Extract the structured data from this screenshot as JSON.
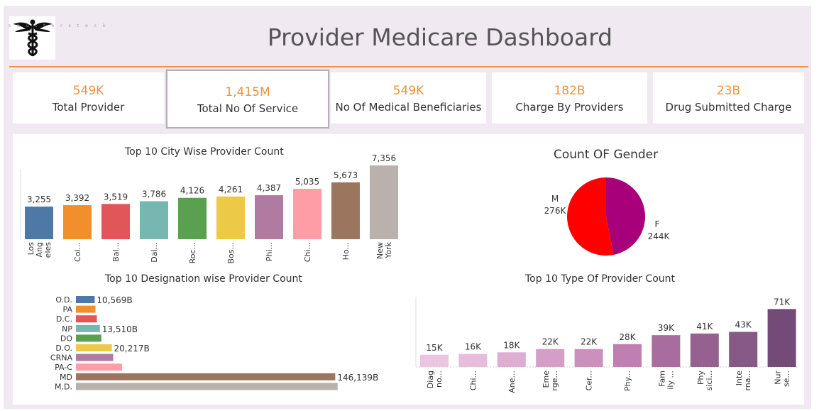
{
  "header": {
    "title": "Provider Medicare Dashboard",
    "logo_icon": "caduceus-icon",
    "logo_text": "shutterstock"
  },
  "kpis": [
    {
      "value": "549K",
      "label": "Total Provider"
    },
    {
      "value": "1,415M",
      "label": "Total No Of Service"
    },
    {
      "value": "549K",
      "label": "No Of Medical Beneficiaries"
    },
    {
      "value": "182B",
      "label": "Charge By Providers"
    },
    {
      "value": "23B",
      "label": "Drug Submitted Charge"
    }
  ],
  "chart_data": [
    {
      "type": "bar",
      "title": "Top 10 City Wise Provider Count",
      "categories": [
        "Los Angeles",
        "Col...",
        "Bal...",
        "Dal...",
        "Roc...",
        "Bos...",
        "Phi...",
        "Chi...",
        "Ho...",
        "New York"
      ],
      "tick_lines": [
        [
          "Los",
          "Ang",
          "eles"
        ],
        [
          "Col..."
        ],
        [
          "Bal..."
        ],
        [
          "Dal..."
        ],
        [
          "Roc..."
        ],
        [
          "Bos..."
        ],
        [
          "Phi..."
        ],
        [
          "Chi..."
        ],
        [
          "Ho..."
        ],
        [
          "New",
          "York"
        ]
      ],
      "values": [
        3255,
        3392,
        3519,
        3786,
        4126,
        4261,
        4387,
        5035,
        5673,
        7356
      ],
      "labels": [
        "3,255",
        "3,392",
        "3,519",
        "3,786",
        "4,126",
        "4,261",
        "4,387",
        "5,035",
        "5,673",
        "7,356"
      ],
      "colors": [
        "#4e79a7",
        "#f28e2b",
        "#e15759",
        "#76b7b2",
        "#59a14f",
        "#edc948",
        "#b07aa1",
        "#ff9da7",
        "#9c755f",
        "#bab0ac"
      ],
      "ylim": [
        0,
        8000
      ]
    },
    {
      "type": "pie",
      "title": "Count OF Gender",
      "categories": [
        "M",
        "F"
      ],
      "values": [
        276,
        244
      ],
      "labels": [
        "276K",
        "244K"
      ],
      "colors": [
        "#ff0000",
        "#a8007a"
      ]
    },
    {
      "type": "bar",
      "orientation": "horizontal",
      "title": "Top 10 Designation wise Provider Count",
      "categories": [
        "O.D.",
        "PA",
        "D.C.",
        "NP",
        "DO",
        "D.O.",
        "CRNA",
        "PA-C",
        "MD",
        "M.D."
      ],
      "values": [
        10569,
        11000,
        11800,
        13510,
        14300,
        20217,
        21000,
        26000,
        146139,
        147500
      ],
      "labels": [
        "10,569B",
        "",
        "",
        "13,510B",
        "",
        "20,217B",
        "",
        "",
        "146,139B",
        ""
      ],
      "colors": [
        "#4e79a7",
        "#f28e2b",
        "#e15759",
        "#76b7b2",
        "#59a14f",
        "#edc948",
        "#b07aa1",
        "#ff9da7",
        "#9c755f",
        "#bab0ac"
      ],
      "xlim": [
        0,
        150000
      ]
    },
    {
      "type": "bar",
      "title": "Top 10 Type  Of Provider Count",
      "categories": [
        "Diagno...",
        "Chi...",
        "Ane...",
        "Emerge...",
        "Cer...",
        "Phy...",
        "Family...",
        "Physici...",
        "Interna...",
        "Nurse..."
      ],
      "tick_lines": [
        [
          "Diag",
          "no..."
        ],
        [
          "Chi..."
        ],
        [
          "Ane..."
        ],
        [
          "Eme",
          "rge..."
        ],
        [
          "Cer..."
        ],
        [
          "Phy..."
        ],
        [
          "Fam",
          "ily ..."
        ],
        [
          "Phy",
          "sici..."
        ],
        [
          "Inte",
          "rna..."
        ],
        [
          "Nur",
          "se..."
        ]
      ],
      "values": [
        15,
        16,
        18,
        22,
        22,
        28,
        39,
        41,
        43,
        71
      ],
      "labels": [
        "15K",
        "16K",
        "18K",
        "22K",
        "22K",
        "28K",
        "39K",
        "41K",
        "43K",
        "71K"
      ],
      "colors": [
        "#ecc6e0",
        "#e8bcdb",
        "#deadd2",
        "#d59ec7",
        "#cc90bd",
        "#bf7fb0",
        "#a96c9e",
        "#956290",
        "#865a85",
        "#744a78"
      ],
      "ylim": [
        0,
        80
      ]
    }
  ]
}
